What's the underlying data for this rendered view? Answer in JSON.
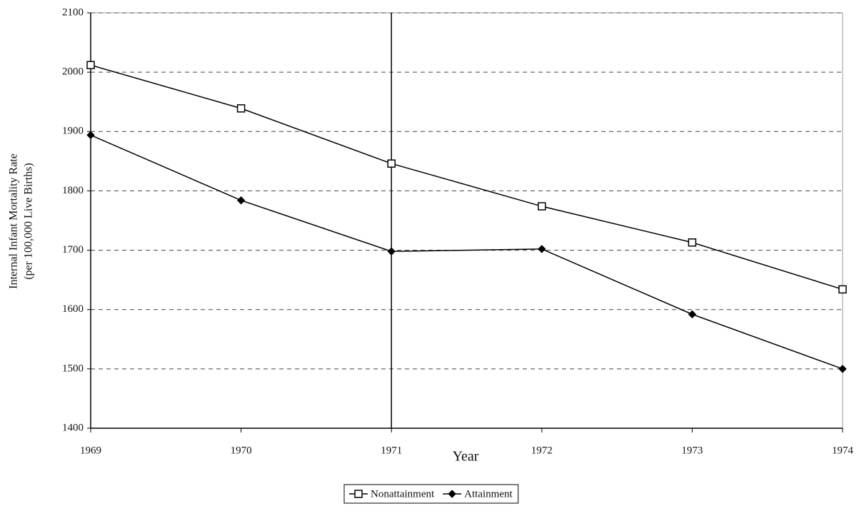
{
  "chart_data": {
    "type": "line",
    "y_label": [
      "Internal Infant Mortality Rate",
      "(per 100,000 Live Births)"
    ],
    "x_label": "Year",
    "x": [
      1969,
      1970,
      1971,
      1972,
      1973,
      1974
    ],
    "xlim": [
      1969,
      1974
    ],
    "xticks": [
      1969,
      1970,
      1971,
      1972,
      1973,
      1974
    ],
    "ylim": [
      1400,
      2100
    ],
    "yticks": [
      1400,
      1500,
      1600,
      1700,
      1800,
      1900,
      2000,
      2100
    ],
    "grid": true,
    "vline": 1971,
    "legend": "bottom",
    "series": [
      {
        "name": "Nonattainment",
        "color": "#000000",
        "marker": "square",
        "values": [
          2012,
          1939,
          1846,
          1774,
          1713,
          1634
        ]
      },
      {
        "name": "Attainment",
        "color": "#000000",
        "marker": "diamond",
        "values": [
          1894,
          1784,
          1698,
          1702,
          1592,
          1500
        ]
      }
    ]
  }
}
